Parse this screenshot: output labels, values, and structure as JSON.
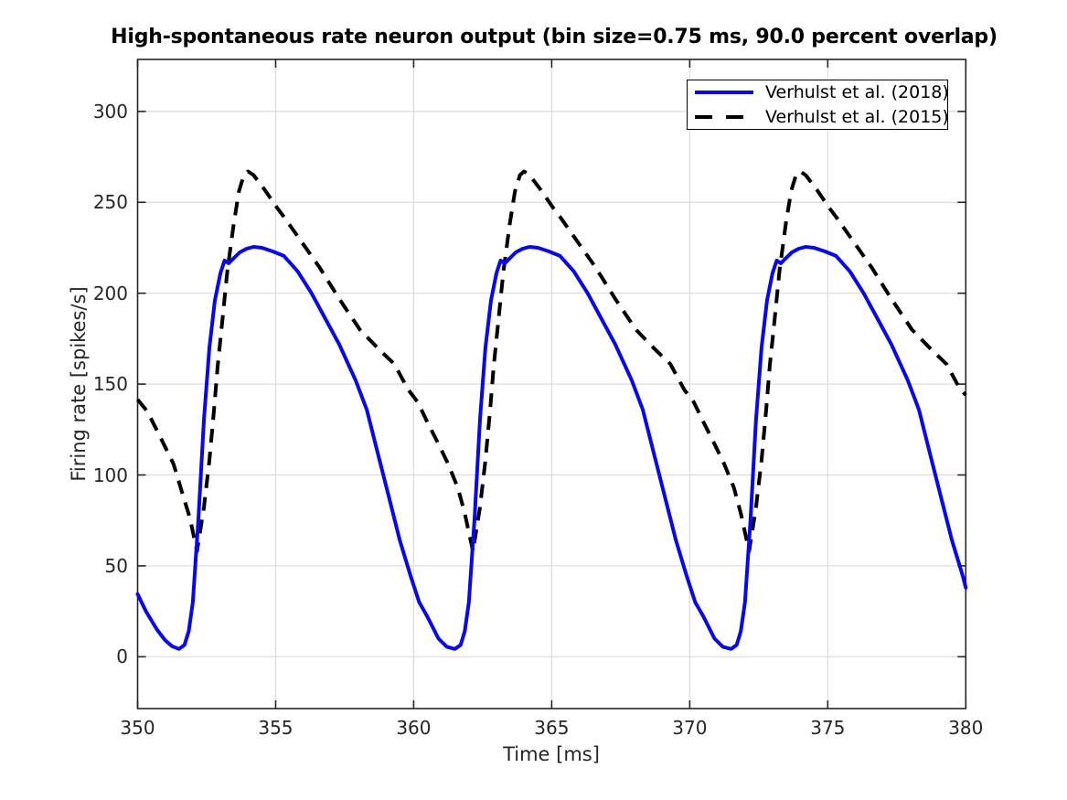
{
  "figure": {
    "background": "#FFFFFF"
  },
  "chart_data": {
    "type": "line",
    "title": "High-spontaneous rate neuron output (bin size=0.75 ms, 90.0 percent overlap)",
    "xlabel": "Time [ms]",
    "ylabel": "Firing rate [spikes/s]",
    "xlim": [
      350,
      380
    ],
    "ylim": [
      -28.5,
      328.6
    ],
    "xticks": [
      350,
      355,
      360,
      365,
      370,
      375,
      380
    ],
    "yticks": [
      0,
      50,
      100,
      150,
      200,
      250,
      300
    ],
    "grid": true,
    "grid_color": "#DCDCDC",
    "axis_color": "#262626",
    "legend": {
      "position": "upper right",
      "border_color": "#000000"
    },
    "series": [
      {
        "name": "Verhulst et al. (2018)",
        "color": "#0707F0",
        "style": "solid",
        "line_width": 4,
        "points": [
          [
            350,
            34.5
          ],
          [
            350.3,
            25
          ],
          [
            350.7,
            15
          ],
          [
            351,
            9
          ],
          [
            351.25,
            5.8
          ],
          [
            351.5,
            4.3
          ],
          [
            351.7,
            6.5
          ],
          [
            351.85,
            14
          ],
          [
            352,
            30
          ],
          [
            352.2,
            75
          ],
          [
            352.4,
            130
          ],
          [
            352.6,
            170
          ],
          [
            352.8,
            196
          ],
          [
            353,
            211
          ],
          [
            353.15,
            218
          ],
          [
            353.3,
            216.5
          ],
          [
            353.5,
            219.5
          ],
          [
            353.7,
            222.5
          ],
          [
            353.95,
            224.5
          ],
          [
            354.2,
            225.5
          ],
          [
            354.5,
            225
          ],
          [
            354.9,
            223
          ],
          [
            355.3,
            220.5
          ],
          [
            355.8,
            212
          ],
          [
            356.3,
            200
          ],
          [
            356.8,
            186
          ],
          [
            357.3,
            172
          ],
          [
            357.9,
            152
          ],
          [
            358.3,
            136
          ],
          [
            358.7,
            112
          ],
          [
            359.1,
            88
          ],
          [
            359.5,
            64
          ],
          [
            359.9,
            44
          ],
          [
            360.2,
            30
          ],
          [
            360.5,
            22
          ],
          [
            360.9,
            10
          ],
          [
            361.2,
            5.5
          ],
          [
            361.5,
            4.3
          ],
          [
            361.7,
            6.5
          ],
          [
            361.85,
            14
          ],
          [
            362,
            30
          ],
          [
            362.2,
            75
          ],
          [
            362.4,
            130
          ],
          [
            362.6,
            170
          ],
          [
            362.8,
            196
          ],
          [
            363,
            211
          ],
          [
            363.15,
            218
          ],
          [
            363.3,
            216.5
          ],
          [
            363.5,
            219.5
          ],
          [
            363.7,
            222.5
          ],
          [
            363.95,
            224.5
          ],
          [
            364.2,
            225.5
          ],
          [
            364.5,
            225
          ],
          [
            364.9,
            223
          ],
          [
            365.3,
            220.5
          ],
          [
            365.8,
            212
          ],
          [
            366.3,
            200
          ],
          [
            366.8,
            186
          ],
          [
            367.3,
            172
          ],
          [
            367.9,
            152
          ],
          [
            368.3,
            136
          ],
          [
            368.7,
            112
          ],
          [
            369.1,
            88
          ],
          [
            369.5,
            64
          ],
          [
            369.9,
            44
          ],
          [
            370.2,
            30
          ],
          [
            370.5,
            22
          ],
          [
            370.9,
            10
          ],
          [
            371.2,
            5.5
          ],
          [
            371.5,
            4.3
          ],
          [
            371.7,
            6.5
          ],
          [
            371.85,
            14
          ],
          [
            372,
            30
          ],
          [
            372.2,
            75
          ],
          [
            372.4,
            130
          ],
          [
            372.6,
            170
          ],
          [
            372.8,
            196
          ],
          [
            373,
            211
          ],
          [
            373.15,
            218
          ],
          [
            373.3,
            216.5
          ],
          [
            373.5,
            219.5
          ],
          [
            373.7,
            222.5
          ],
          [
            373.95,
            224.5
          ],
          [
            374.2,
            225.5
          ],
          [
            374.5,
            225
          ],
          [
            374.9,
            223
          ],
          [
            375.3,
            220.5
          ],
          [
            375.8,
            212
          ],
          [
            376.3,
            200
          ],
          [
            376.8,
            186
          ],
          [
            377.3,
            172
          ],
          [
            377.9,
            152
          ],
          [
            378.3,
            136
          ],
          [
            378.7,
            112
          ],
          [
            379.1,
            88
          ],
          [
            379.5,
            64
          ],
          [
            379.9,
            44
          ],
          [
            380,
            38
          ]
        ]
      },
      {
        "name": "Verhulst et al. (2015)",
        "color": "#000000",
        "style": "dashed",
        "line_width": 4,
        "dash": [
          15,
          10
        ],
        "points": [
          [
            350,
            141.5
          ],
          [
            350.35,
            135
          ],
          [
            350.8,
            121.5
          ],
          [
            351.3,
            106
          ],
          [
            351.6,
            91
          ],
          [
            351.9,
            76
          ],
          [
            352.15,
            58
          ],
          [
            352.4,
            82
          ],
          [
            352.6,
            108
          ],
          [
            352.77,
            136
          ],
          [
            352.9,
            160
          ],
          [
            353.05,
            182
          ],
          [
            353.25,
            212
          ],
          [
            353.48,
            238
          ],
          [
            353.67,
            256
          ],
          [
            353.85,
            265
          ],
          [
            354,
            267
          ],
          [
            354.2,
            265
          ],
          [
            354.6,
            257
          ],
          [
            355.05,
            247
          ],
          [
            355.3,
            242
          ],
          [
            355.95,
            228
          ],
          [
            356.6,
            214
          ],
          [
            357.3,
            197
          ],
          [
            358.05,
            180
          ],
          [
            358.75,
            169
          ],
          [
            359.3,
            161
          ],
          [
            359.8,
            147
          ],
          [
            360.15,
            140
          ],
          [
            360.5,
            129
          ],
          [
            360.9,
            117
          ],
          [
            361.25,
            106
          ],
          [
            361.6,
            93
          ],
          [
            361.85,
            79
          ],
          [
            362.15,
            58
          ],
          [
            362.4,
            82
          ],
          [
            362.6,
            108
          ],
          [
            362.77,
            136
          ],
          [
            362.9,
            160
          ],
          [
            363.05,
            182
          ],
          [
            363.25,
            212
          ],
          [
            363.48,
            238
          ],
          [
            363.67,
            256
          ],
          [
            363.85,
            265
          ],
          [
            364,
            267
          ],
          [
            364.2,
            265
          ],
          [
            364.6,
            257
          ],
          [
            365.05,
            247
          ],
          [
            365.3,
            242
          ],
          [
            365.95,
            228
          ],
          [
            366.6,
            214
          ],
          [
            367.3,
            197
          ],
          [
            368.05,
            180
          ],
          [
            368.75,
            169
          ],
          [
            369.3,
            161
          ],
          [
            369.8,
            147
          ],
          [
            370.15,
            140
          ],
          [
            370.5,
            129
          ],
          [
            370.9,
            117
          ],
          [
            371.25,
            106
          ],
          [
            371.6,
            93
          ],
          [
            371.85,
            79
          ],
          [
            372.15,
            58
          ],
          [
            372.4,
            82
          ],
          [
            372.6,
            108
          ],
          [
            372.77,
            136
          ],
          [
            372.9,
            160
          ],
          [
            373.05,
            182
          ],
          [
            373.25,
            212
          ],
          [
            373.48,
            238
          ],
          [
            373.67,
            256
          ],
          [
            373.85,
            265
          ],
          [
            374,
            267
          ],
          [
            374.2,
            265
          ],
          [
            374.6,
            257
          ],
          [
            375.05,
            247
          ],
          [
            375.3,
            242
          ],
          [
            375.95,
            228
          ],
          [
            376.6,
            214
          ],
          [
            377.3,
            197
          ],
          [
            378.05,
            180
          ],
          [
            378.75,
            169
          ],
          [
            379.3,
            161
          ],
          [
            379.8,
            147
          ],
          [
            380,
            144
          ]
        ]
      }
    ]
  }
}
